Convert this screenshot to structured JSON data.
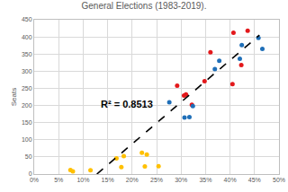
{
  "chart_data": {
    "type": "scatter",
    "title": "General Elections (1983-2019).",
    "y_label": "Seats",
    "grid": true,
    "xlim": [
      0,
      50
    ],
    "xticks": [
      {
        "value": 0,
        "label": "0%"
      },
      {
        "value": 5,
        "label": "5%"
      },
      {
        "value": 10,
        "label": "10%"
      },
      {
        "value": 15,
        "label": "15%"
      },
      {
        "value": 20,
        "label": "20%"
      },
      {
        "value": 25,
        "label": "25%"
      },
      {
        "value": 30,
        "label": "30%"
      },
      {
        "value": 35,
        "label": "35%"
      },
      {
        "value": 40,
        "label": "40%"
      },
      {
        "value": 45,
        "label": "45%"
      },
      {
        "value": 50,
        "label": "50%"
      }
    ],
    "ylim": [
      0,
      450
    ],
    "yticks": [
      0,
      50,
      100,
      150,
      200,
      250,
      300,
      350,
      400,
      450
    ],
    "annotations": [
      {
        "text": "R² = 0.8513",
        "x": 19,
        "y": 205
      }
    ],
    "series": [
      {
        "type": "scatter",
        "marker": "circle",
        "color": "#e3191c",
        "x": [
          43.6,
          40.7,
          36.0,
          34.8,
          40.5,
          42.3,
          29.2,
          31.0,
          30.6,
          32.2
        ],
        "values": [
          418,
          412,
          355,
          271,
          262,
          318,
          258,
          232,
          229,
          202
        ]
      },
      {
        "type": "scatter",
        "marker": "circle",
        "color": "#1f6fb8",
        "x": [
          45.8,
          46.6,
          42.4,
          42.0,
          37.8,
          36.9,
          27.6,
          30.7,
          31.7,
          32.4
        ],
        "values": [
          397,
          365,
          376,
          336,
          330,
          306,
          209,
          165,
          166,
          198
        ]
      },
      {
        "type": "scatter",
        "marker": "circle",
        "color": "#ffc000",
        "x": [
          7.4,
          7.9,
          11.5,
          16.8,
          17.8,
          18.3,
          22.0,
          22.6,
          23.0,
          25.4
        ],
        "values": [
          12,
          8,
          11,
          46,
          20,
          52,
          62,
          22,
          57,
          23
        ]
      },
      {
        "type": "line",
        "line_style": "dash",
        "color": "#000000",
        "x": [
          12.8,
          46.0
        ],
        "values": [
          0,
          405
        ]
      }
    ]
  }
}
